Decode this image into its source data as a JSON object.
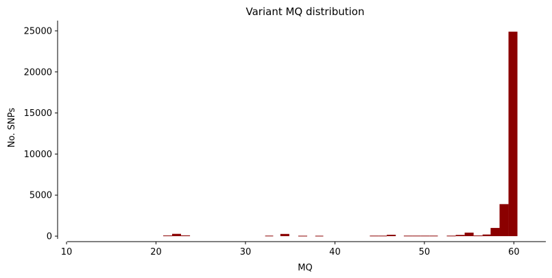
{
  "chart_data": {
    "type": "bar",
    "title": "Variant MQ distribution",
    "xlabel": "MQ",
    "ylabel": "No. SNPs",
    "xlim": [
      9,
      62.5
    ],
    "ylim": [
      -1000,
      26250
    ],
    "x_ticks": [
      10,
      20,
      30,
      40,
      50,
      60
    ],
    "y_ticks": [
      0,
      5000,
      10000,
      15000,
      20000,
      25000
    ],
    "bar_color": "#8b0000",
    "grid": false,
    "bins": [
      {
        "x0": 20.8,
        "x1": 21.8,
        "value": 80
      },
      {
        "x0": 21.8,
        "x1": 22.8,
        "value": 280
      },
      {
        "x0": 22.8,
        "x1": 23.8,
        "value": 90
      },
      {
        "x0": 32.2,
        "x1": 33.1,
        "value": 60
      },
      {
        "x0": 33.9,
        "x1": 34.9,
        "value": 270
      },
      {
        "x0": 35.9,
        "x1": 36.9,
        "value": 50
      },
      {
        "x0": 37.8,
        "x1": 38.7,
        "value": 50
      },
      {
        "x0": 43.9,
        "x1": 44.9,
        "value": 60
      },
      {
        "x0": 44.9,
        "x1": 45.8,
        "value": 60
      },
      {
        "x0": 45.8,
        "x1": 46.8,
        "value": 170
      },
      {
        "x0": 47.7,
        "x1": 48.7,
        "value": 60
      },
      {
        "x0": 48.7,
        "x1": 49.6,
        "value": 60
      },
      {
        "x0": 49.6,
        "x1": 50.6,
        "value": 60
      },
      {
        "x0": 50.6,
        "x1": 51.5,
        "value": 60
      },
      {
        "x0": 52.5,
        "x1": 53.5,
        "value": 60
      },
      {
        "x0": 53.5,
        "x1": 54.5,
        "value": 150
      },
      {
        "x0": 54.5,
        "x1": 55.5,
        "value": 430
      },
      {
        "x0": 55.5,
        "x1": 56.5,
        "value": 80
      },
      {
        "x0": 56.5,
        "x1": 57.4,
        "value": 200
      },
      {
        "x0": 57.4,
        "x1": 58.4,
        "value": 1000
      },
      {
        "x0": 58.4,
        "x1": 59.4,
        "value": 3900
      },
      {
        "x0": 59.4,
        "x1": 60.4,
        "value": 24900
      }
    ]
  }
}
